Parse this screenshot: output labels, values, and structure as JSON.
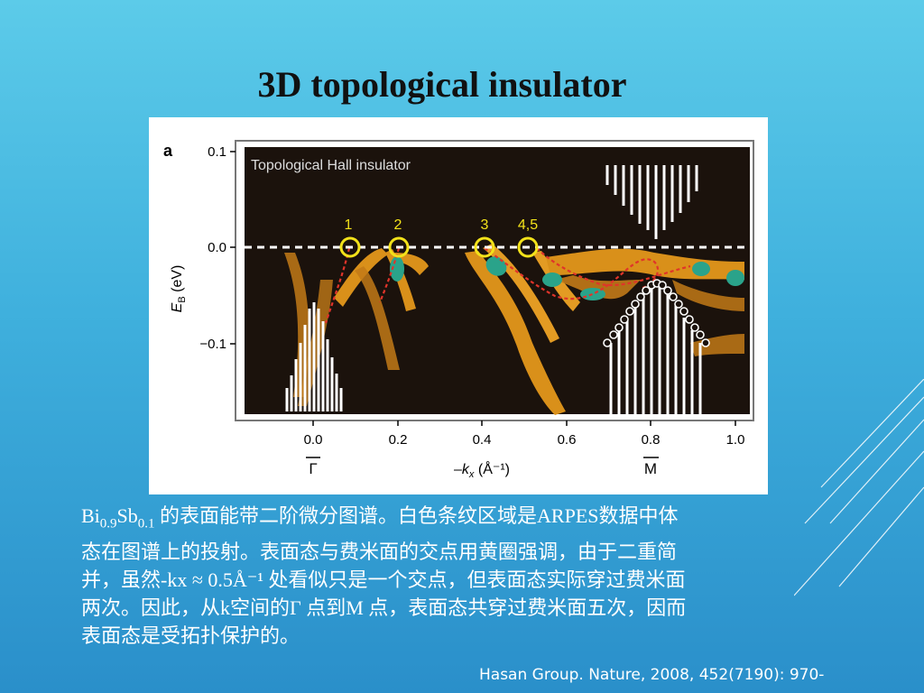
{
  "slide": {
    "title": "3D topological insulator",
    "citation": "Hasan Group. Nature, 2008, 452(7190): 970-"
  },
  "figure": {
    "panel_label": "a",
    "inset_title": "Topological Hall insulator",
    "ylabel_main": "E",
    "ylabel_sub": "B",
    "ylabel_unit": " (eV)",
    "yticks": [
      "0.1",
      "0.0",
      "−0.1"
    ],
    "xticks": [
      "0.0",
      "0.2",
      "0.4",
      "0.6",
      "0.8",
      "1.0"
    ],
    "xlabel": "–k",
    "xlabel_sub": "x",
    "xlabel_unit": " (Å⁻¹)",
    "gamma_label": "Γ",
    "m_label": "M",
    "crossing_labels": [
      "1",
      "2",
      "3",
      "4,5"
    ]
  },
  "caption": {
    "formula_bi": "Bi",
    "formula_bi_sub": "0.9",
    "formula_sb": "Sb",
    "formula_sb_sub": "0.1",
    "line1_rest": " 的表面能带二阶微分图谱。白色条纹区域是ARPES数据中体",
    "line2": "态在图谱上的投射。表面态与费米面的交点用黄圈强调，由于二重简",
    "line3": "并，虽然-kx ≈ 0.5Å⁻¹ 处看似只是一个交点，但表面态实际穿过费米面",
    "line4": "两次。因此，从k空间的Γ 点到M 点，表面态共穿过费米面五次，因而",
    "line5": "表面态是受拓扑保护的。"
  },
  "colors": {
    "plot_bg": "#1b120c",
    "band": "#d9901a",
    "hotspot": "#2aa38a",
    "marker": "#f3e21a",
    "fit_line": "#e0342a"
  }
}
